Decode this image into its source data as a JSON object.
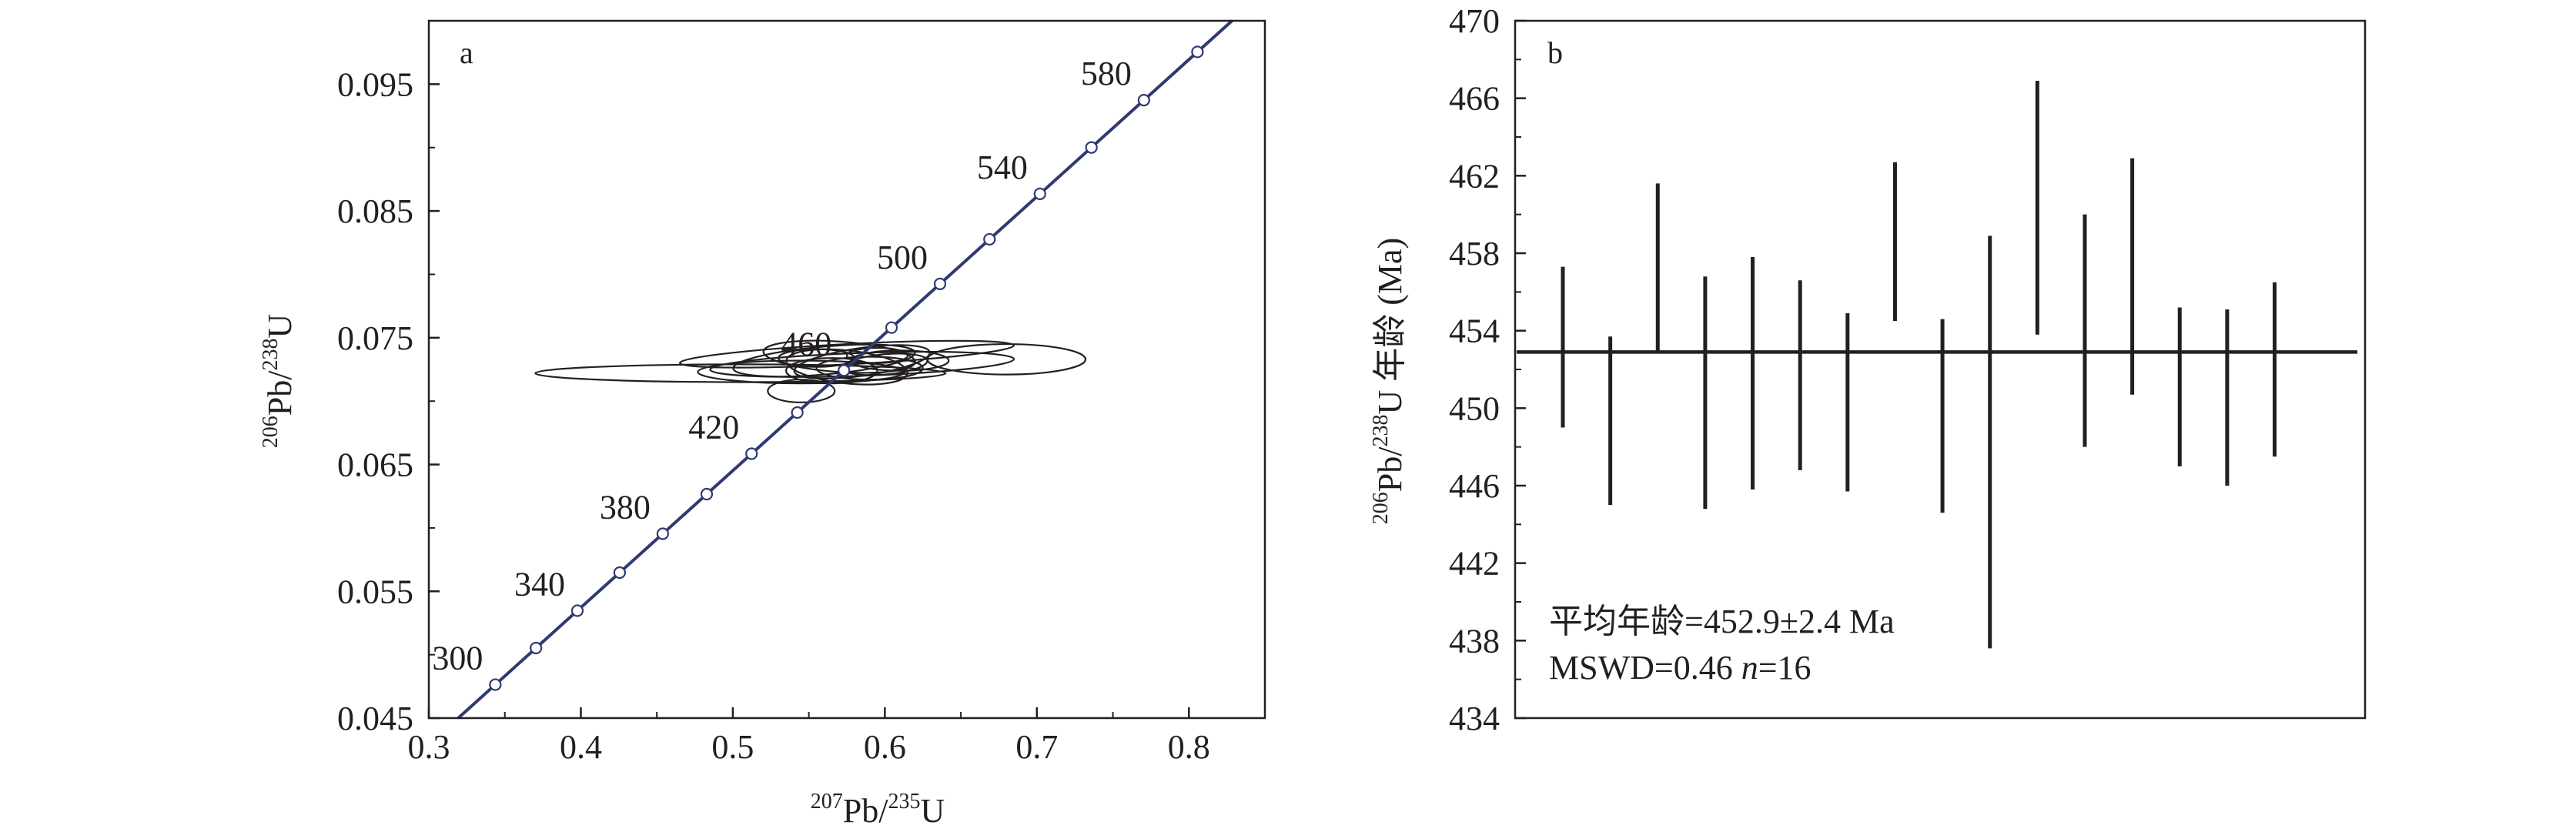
{
  "panel_a": {
    "letter": "a",
    "xlabel": {
      "sup1": "207",
      "main1": "Pb/",
      "sup2": "235",
      "main2": "U"
    },
    "ylabel": {
      "sup1": "206",
      "main1": "Pb/",
      "sup2": "238",
      "main2": "U"
    }
  },
  "panel_b": {
    "letter": "b",
    "ylabel": {
      "sup1": "206",
      "main1": "Pb/",
      "sup2": "238",
      "main2": "U 年龄 (Ma)"
    },
    "annotation_line1": "平均年龄=452.9±2.4 Ma",
    "annotation_line2_prefix": "MSWD=0.46 ",
    "annotation_line2_n": "n",
    "annotation_line2_suffix": "=16"
  },
  "colors": {
    "concordia": "#2e3a72",
    "ink": "#231f20",
    "marker_fill": "#ffffff"
  },
  "chart_data": [
    {
      "type": "scatter",
      "title": "a",
      "xlabel": "207Pb/235U",
      "ylabel": "206Pb/238U",
      "xlim": [
        0.3,
        0.85
      ],
      "ylim": [
        0.045,
        0.1
      ],
      "x_ticks": [
        "0.3",
        "0.4",
        "0.5",
        "0.6",
        "0.7",
        "0.8"
      ],
      "y_ticks": [
        "0.045",
        "0.055",
        "0.065",
        "0.075",
        "0.085",
        "0.095"
      ],
      "concordia_age_labels": [
        "300",
        "340",
        "380",
        "420",
        "460",
        "500",
        "540",
        "580"
      ],
      "concordia_age_markers_ma": [
        300,
        320,
        340,
        360,
        380,
        400,
        420,
        440,
        460,
        480,
        500,
        520,
        540,
        560,
        580,
        600
      ],
      "error_ellipses": [
        {
          "x": 0.505,
          "y": 0.0722,
          "rx": 0.135,
          "ry": 0.0007,
          "angle": 0
        },
        {
          "x": 0.575,
          "y": 0.0737,
          "rx": 0.11,
          "ry": 0.0008,
          "angle": 3
        },
        {
          "x": 0.585,
          "y": 0.0729,
          "rx": 0.1,
          "ry": 0.0009,
          "angle": 2
        },
        {
          "x": 0.68,
          "y": 0.0733,
          "rx": 0.052,
          "ry": 0.0012,
          "angle": 0
        },
        {
          "x": 0.56,
          "y": 0.0732,
          "rx": 0.06,
          "ry": 0.0011,
          "angle": 5
        },
        {
          "x": 0.57,
          "y": 0.0735,
          "rx": 0.05,
          "ry": 0.0012,
          "angle": -4
        },
        {
          "x": 0.545,
          "y": 0.0723,
          "rx": 0.068,
          "ry": 0.0009,
          "angle": 0
        },
        {
          "x": 0.585,
          "y": 0.0731,
          "rx": 0.045,
          "ry": 0.0011,
          "angle": 8
        },
        {
          "x": 0.575,
          "y": 0.0727,
          "rx": 0.04,
          "ry": 0.0013,
          "angle": -6
        },
        {
          "x": 0.59,
          "y": 0.0726,
          "rx": 0.035,
          "ry": 0.0009,
          "angle": 0
        },
        {
          "x": 0.545,
          "y": 0.0708,
          "rx": 0.022,
          "ry": 0.0009,
          "angle": 0
        },
        {
          "x": 0.6,
          "y": 0.0729,
          "rx": 0.028,
          "ry": 0.0008,
          "angle": 5
        },
        {
          "x": 0.565,
          "y": 0.0724,
          "rx": 0.03,
          "ry": 0.001,
          "angle": 0
        },
        {
          "x": 0.61,
          "y": 0.0732,
          "rx": 0.032,
          "ry": 0.0008,
          "angle": 0
        },
        {
          "x": 0.555,
          "y": 0.0734,
          "rx": 0.025,
          "ry": 0.0007,
          "angle": 0
        },
        {
          "x": 0.595,
          "y": 0.0736,
          "rx": 0.02,
          "ry": 0.0006,
          "angle": 0
        }
      ]
    },
    {
      "type": "bar",
      "subtype": "error_bars",
      "title": "b",
      "ylabel": "206Pb/238U 年龄 (Ma)",
      "ylim": [
        434,
        470
      ],
      "y_ticks": [
        "434",
        "438",
        "442",
        "446",
        "450",
        "454",
        "458",
        "462",
        "466",
        "470"
      ],
      "weighted_mean": 452.9,
      "annotation": [
        "平均年龄=452.9±2.4 Ma",
        "MSWD=0.46 n=16"
      ],
      "series": [
        {
          "low": 449.0,
          "high": 457.3
        },
        {
          "low": 445.0,
          "high": 453.7
        },
        {
          "low": 452.9,
          "high": 461.6
        },
        {
          "low": 444.8,
          "high": 456.8
        },
        {
          "low": 445.8,
          "high": 457.8
        },
        {
          "low": 446.8,
          "high": 456.6
        },
        {
          "low": 445.7,
          "high": 454.9
        },
        {
          "low": 454.5,
          "high": 462.7
        },
        {
          "low": 444.6,
          "high": 454.6
        },
        {
          "low": 437.6,
          "high": 458.9
        },
        {
          "low": 453.8,
          "high": 466.9
        },
        {
          "low": 448.0,
          "high": 460.0
        },
        {
          "low": 450.7,
          "high": 462.9
        },
        {
          "low": 447.0,
          "high": 455.2
        },
        {
          "low": 446.0,
          "high": 455.1
        },
        {
          "low": 447.5,
          "high": 456.5
        }
      ]
    }
  ]
}
